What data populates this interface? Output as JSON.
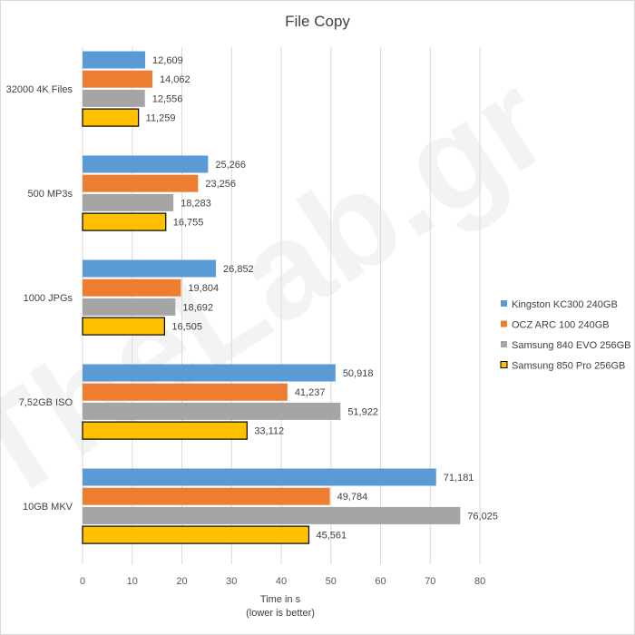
{
  "chart_data": {
    "type": "bar",
    "orientation": "horizontal",
    "title": "File Copy",
    "xlabel": "Time in s",
    "xlabel_note": "(lower is better)",
    "xlim": [
      0,
      80
    ],
    "xticks": [
      "0",
      "10",
      "20",
      "30",
      "40",
      "50",
      "60",
      "70",
      "80"
    ],
    "grid": true,
    "legend_position": "right",
    "watermark": "TheLab.gr",
    "categories": [
      "32000 4K Files",
      "500 MP3s",
      "1000 JPGs",
      "7,52GB ISO",
      "10GB MKV"
    ],
    "series": [
      {
        "name": "Kingston KC300 240GB",
        "color": "#5b9bd5",
        "outline": false,
        "values": [
          12.609,
          25.266,
          26.852,
          50.918,
          71.181
        ],
        "labels": [
          "12,609",
          "25,266",
          "26,852",
          "50,918",
          "71,181"
        ]
      },
      {
        "name": "OCZ ARC 100 240GB",
        "color": "#ed7d31",
        "outline": false,
        "values": [
          14.062,
          23.256,
          19.804,
          41.237,
          49.784
        ],
        "labels": [
          "14,062",
          "23,256",
          "19,804",
          "41,237",
          "49,784"
        ]
      },
      {
        "name": "Samsung 840 EVO 256GB",
        "color": "#a5a5a5",
        "outline": false,
        "values": [
          12.556,
          18.283,
          18.692,
          51.922,
          76.025
        ],
        "labels": [
          "12,556",
          "18,283",
          "18,692",
          "51,922",
          "76,025"
        ]
      },
      {
        "name": "Samsung 850 Pro 256GB",
        "color": "#ffc000",
        "outline": true,
        "values": [
          11.259,
          16.755,
          16.505,
          33.112,
          45.561
        ],
        "labels": [
          "11,259",
          "16,755",
          "16,505",
          "33,112",
          "45,561"
        ]
      }
    ]
  }
}
